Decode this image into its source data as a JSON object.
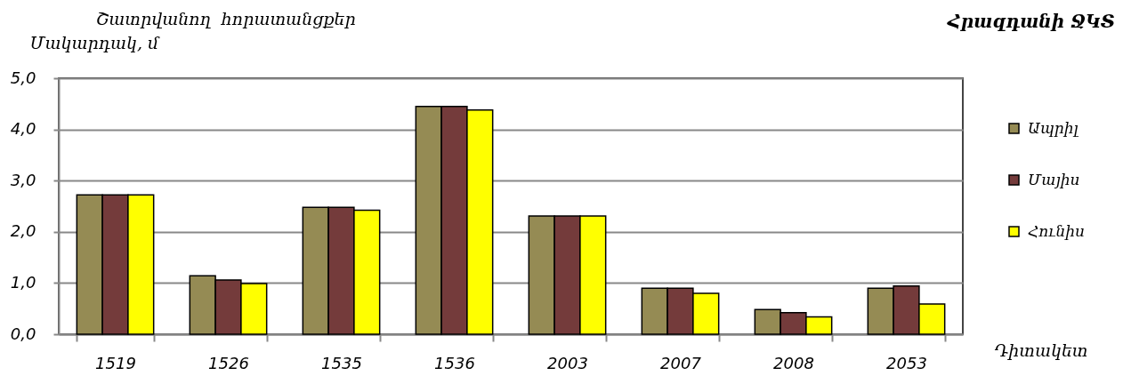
{
  "chart_data": {
    "type": "bar",
    "title": "Հրազդանի ՋԿՏ",
    "subtitle": "Շատրվանող հորատանցքեր",
    "ylabel": "Մակարդակ, մ",
    "xlabel": "Դիտակետ",
    "categories": [
      "1519",
      "1526",
      "1535",
      "1536",
      "2003",
      "2007",
      "2008",
      "2053"
    ],
    "series": [
      {
        "name": "Ապրիլ",
        "color": "#958b54",
        "values": [
          2.72,
          1.14,
          2.48,
          4.45,
          2.31,
          0.9,
          0.48,
          0.9
        ]
      },
      {
        "name": "Մայիս",
        "color": "#743b3b",
        "values": [
          2.72,
          1.06,
          2.48,
          4.45,
          2.31,
          0.9,
          0.42,
          0.94
        ]
      },
      {
        "name": "Հունիս",
        "color": "#ffff00",
        "values": [
          2.72,
          0.99,
          2.42,
          4.38,
          2.31,
          0.8,
          0.34,
          0.59
        ]
      }
    ],
    "ylim": [
      0,
      5
    ],
    "yticks": [
      {
        "value": 0,
        "label": "0,0"
      },
      {
        "value": 1,
        "label": "1,0"
      },
      {
        "value": 2,
        "label": "2,0"
      },
      {
        "value": 3,
        "label": "3,0"
      },
      {
        "value": 4,
        "label": "4,0"
      },
      {
        "value": 5,
        "label": "5,0"
      }
    ],
    "grid": "y",
    "legend": "right"
  }
}
